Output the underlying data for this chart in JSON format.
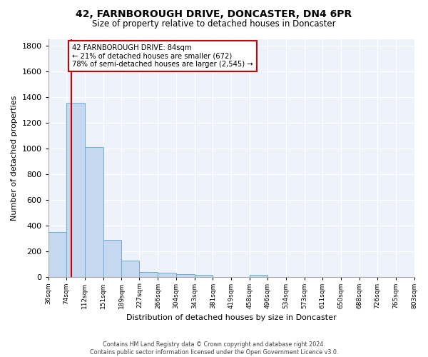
{
  "title1": "42, FARNBOROUGH DRIVE, DONCASTER, DN4 6PR",
  "title2": "Size of property relative to detached houses in Doncaster",
  "xlabel": "Distribution of detached houses by size in Doncaster",
  "ylabel": "Number of detached properties",
  "footnote1": "Contains HM Land Registry data © Crown copyright and database right 2024.",
  "footnote2": "Contains public sector information licensed under the Open Government Licence v3.0.",
  "bin_edges": [
    36,
    74,
    112,
    151,
    189,
    227,
    266,
    304,
    343,
    381,
    419,
    458,
    496,
    534,
    573,
    611,
    650,
    688,
    726,
    765,
    803
  ],
  "bar_heights": [
    350,
    1355,
    1010,
    290,
    130,
    40,
    38,
    25,
    18,
    0,
    0,
    20,
    0,
    0,
    0,
    0,
    0,
    0,
    0,
    0
  ],
  "property_size": 84,
  "property_label": "42 FARNBOROUGH DRIVE: 84sqm",
  "annotation_line1": "← 21% of detached houses are smaller (672)",
  "annotation_line2": "78% of semi-detached houses are larger (2,545) →",
  "bar_facecolor": "#c5d8f0",
  "bar_edgecolor": "#6baed6",
  "vline_color": "#cc0000",
  "annotation_box_edgecolor": "#cc0000",
  "background_color": "#eef2fb",
  "grid_color": "#ffffff",
  "ylim": [
    0,
    1850
  ],
  "yticks": [
    0,
    200,
    400,
    600,
    800,
    1000,
    1200,
    1400,
    1600,
    1800
  ],
  "fig_width": 6.0,
  "fig_height": 5.0,
  "fig_dpi": 100
}
